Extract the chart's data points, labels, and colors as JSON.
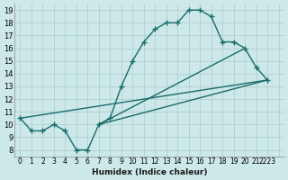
{
  "bg_color": "#cce8e8",
  "line_color": "#1a6b6b",
  "grid_color": "#aacccc",
  "xlabel": "Humidex (Indice chaleur)",
  "xlim": [
    -0.5,
    23.5
  ],
  "ylim": [
    7.5,
    19.5
  ],
  "yticks": [
    8,
    9,
    10,
    11,
    12,
    13,
    14,
    15,
    16,
    17,
    18,
    19
  ],
  "xtick_labels": [
    "0",
    "1",
    "2",
    "3",
    "4",
    "5",
    "6",
    "7",
    "8",
    "9",
    "10",
    "11",
    "12",
    "13",
    "14",
    "15",
    "16",
    "17",
    "18",
    "19",
    "20",
    "21",
    "2223",
    ""
  ],
  "curve_x": [
    0,
    1,
    2,
    3,
    4,
    5,
    6,
    7,
    8,
    9,
    10,
    11,
    12,
    13,
    14,
    15,
    16,
    17,
    18,
    19,
    20,
    21,
    22
  ],
  "curve_y": [
    10.5,
    9.5,
    9.5,
    10.0,
    9.5,
    8.0,
    8.0,
    10.0,
    10.5,
    13.0,
    15.0,
    16.5,
    17.5,
    18.0,
    18.0,
    19.0,
    19.0,
    18.5,
    16.5,
    16.5,
    16.0,
    14.5,
    13.5
  ],
  "line1_x": [
    0,
    22
  ],
  "line1_y": [
    10.5,
    13.5
  ],
  "line2_x": [
    7,
    20
  ],
  "line2_y": [
    10.0,
    16.0
  ],
  "line3_x": [
    7,
    22
  ],
  "line3_y": [
    10.0,
    13.5
  ]
}
